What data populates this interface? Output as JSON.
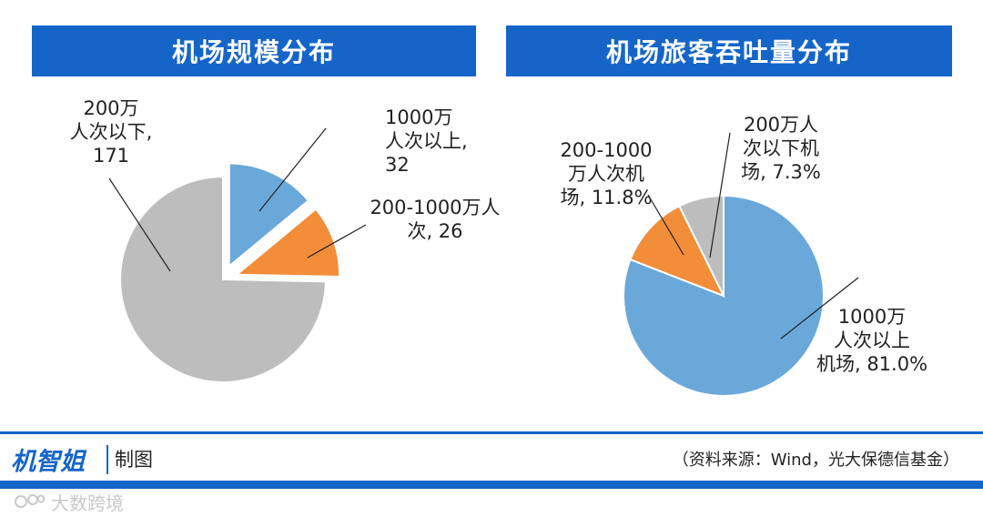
{
  "colors": {
    "accent": "#1565c9",
    "blue": "#6aa8da",
    "orange": "#f28d3a",
    "gray": "#bdbdbd"
  },
  "chart_data": [
    {
      "type": "pie",
      "title": "机场规模分布",
      "slices": [
        {
          "key": "big",
          "label": "1000万\n人次以上,\n32",
          "value": 32,
          "color": "#6aa8da",
          "exploded": true
        },
        {
          "key": "mid",
          "label": "200-1000万人\n次, 26",
          "value": 26,
          "color": "#f28d3a",
          "exploded": true
        },
        {
          "key": "small",
          "label": "200万\n人次以下,\n171",
          "value": 171,
          "color": "#bdbdbd",
          "exploded": false
        }
      ]
    },
    {
      "type": "pie",
      "title": "机场旅客吞吐量分布",
      "slices": [
        {
          "key": "big",
          "label": "1000万\n人次以上\n机场, 81.0%",
          "value": 81.0,
          "color": "#6aa8da"
        },
        {
          "key": "mid",
          "label": "200-1000\n万人次机\n场, 11.8%",
          "value": 11.8,
          "color": "#f28d3a"
        },
        {
          "key": "small",
          "label": "200万人\n次以下机\n场, 7.3%",
          "value": 7.3,
          "color": "#bdbdbd"
        }
      ]
    }
  ],
  "footer": {
    "brand": "机智姐",
    "brand_sub": "制图",
    "source": "（资料来源：Wind，光大保德信基金）",
    "watermark": "大数跨境"
  }
}
